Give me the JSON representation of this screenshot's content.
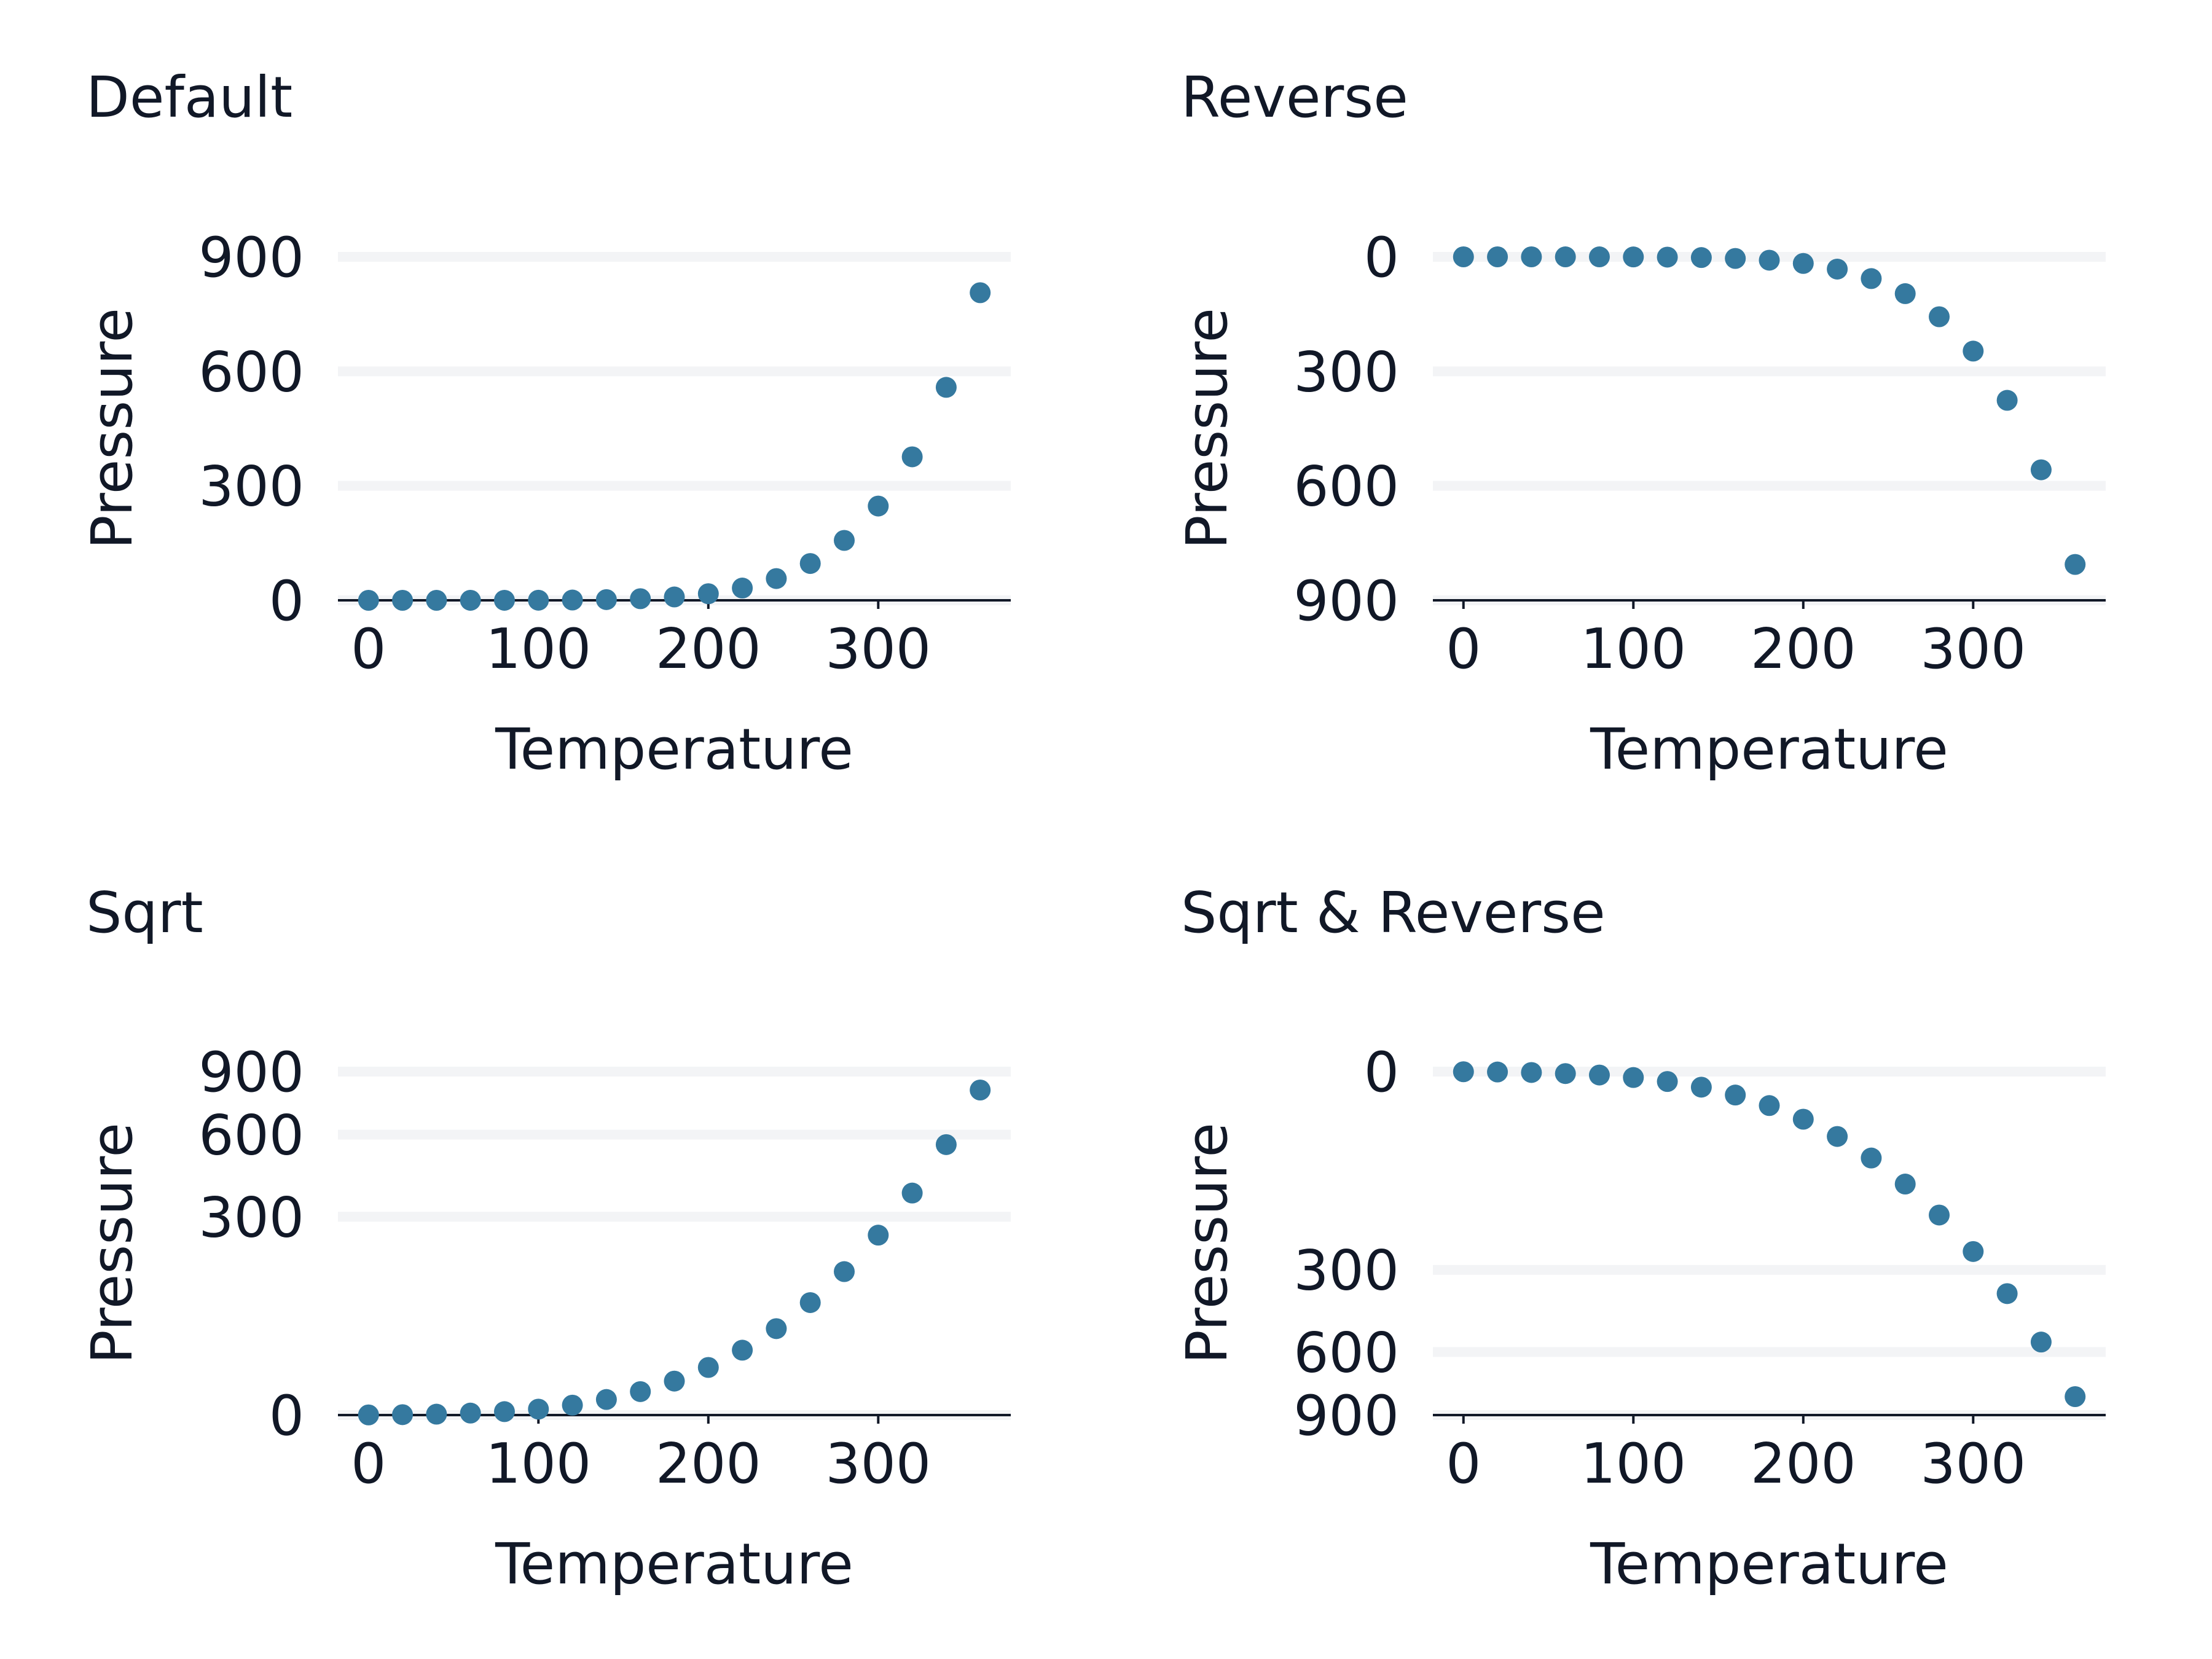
{
  "chart_data": [
    {
      "type": "scatter",
      "title": "Default",
      "xlabel": "Temperature",
      "ylabel": "Pressure",
      "y_scale": "linear",
      "y_reversed": false,
      "xlim": [
        -18,
        378
      ],
      "ylim": [
        0,
        900
      ],
      "x_ticks": [
        0,
        100,
        200,
        300
      ],
      "y_ticks": [
        0,
        300,
        600,
        900
      ],
      "grid": "horizontal",
      "x": [
        0,
        20,
        40,
        60,
        80,
        100,
        120,
        140,
        160,
        180,
        200,
        220,
        240,
        260,
        280,
        300,
        320,
        340,
        360
      ],
      "y": [
        0.0002,
        0.0012,
        0.006,
        0.03,
        0.09,
        0.27,
        0.75,
        1.85,
        4.2,
        8.8,
        17.3,
        32.1,
        57.0,
        96.5,
        157,
        247,
        376,
        558,
        806
      ]
    },
    {
      "type": "scatter",
      "title": "Reverse",
      "xlabel": "Temperature",
      "ylabel": "Pressure",
      "y_scale": "linear",
      "y_reversed": true,
      "xlim": [
        -18,
        378
      ],
      "ylim": [
        0,
        900
      ],
      "x_ticks": [
        0,
        100,
        200,
        300
      ],
      "y_ticks": [
        0,
        300,
        600,
        900
      ],
      "grid": "horizontal",
      "x": [
        0,
        20,
        40,
        60,
        80,
        100,
        120,
        140,
        160,
        180,
        200,
        220,
        240,
        260,
        280,
        300,
        320,
        340,
        360
      ],
      "y": [
        0.0002,
        0.0012,
        0.006,
        0.03,
        0.09,
        0.27,
        0.75,
        1.85,
        4.2,
        8.8,
        17.3,
        32.1,
        57.0,
        96.5,
        157,
        247,
        376,
        558,
        806
      ]
    },
    {
      "type": "scatter",
      "title": "Sqrt",
      "xlabel": "Temperature",
      "ylabel": "Pressure",
      "y_scale": "sqrt",
      "y_reversed": false,
      "xlim": [
        -18,
        378
      ],
      "ylim": [
        0,
        900
      ],
      "x_ticks": [
        0,
        100,
        200,
        300
      ],
      "y_ticks": [
        0,
        300,
        600,
        900
      ],
      "grid": "horizontal",
      "x": [
        0,
        20,
        40,
        60,
        80,
        100,
        120,
        140,
        160,
        180,
        200,
        220,
        240,
        260,
        280,
        300,
        320,
        340,
        360
      ],
      "y": [
        0.0002,
        0.0012,
        0.006,
        0.03,
        0.09,
        0.27,
        0.75,
        1.85,
        4.2,
        8.8,
        17.3,
        32.1,
        57.0,
        96.5,
        157,
        247,
        376,
        558,
        806
      ]
    },
    {
      "type": "scatter",
      "title": "Sqrt & Reverse",
      "xlabel": "Temperature",
      "ylabel": "Pressure",
      "y_scale": "sqrt",
      "y_reversed": true,
      "xlim": [
        -18,
        378
      ],
      "ylim": [
        0,
        900
      ],
      "x_ticks": [
        0,
        100,
        200,
        300
      ],
      "y_ticks": [
        0,
        300,
        600,
        900
      ],
      "grid": "horizontal",
      "x": [
        0,
        20,
        40,
        60,
        80,
        100,
        120,
        140,
        160,
        180,
        200,
        220,
        240,
        260,
        280,
        300,
        320,
        340,
        360
      ],
      "y": [
        0.0002,
        0.0012,
        0.006,
        0.03,
        0.09,
        0.27,
        0.75,
        1.85,
        4.2,
        8.8,
        17.3,
        32.1,
        57.0,
        96.5,
        157,
        247,
        376,
        558,
        806
      ]
    }
  ],
  "colors": {
    "point": "#35799f",
    "grid": "#f3f4f6",
    "axis": "#111827",
    "text": "#111827"
  }
}
